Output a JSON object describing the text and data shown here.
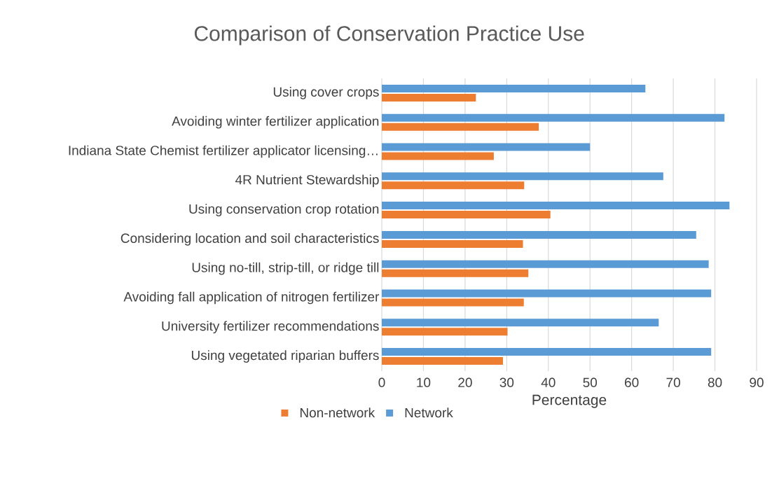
{
  "chart_data": {
    "type": "bar",
    "orientation": "horizontal",
    "title": "Comparison of Conservation Practice Use",
    "xlabel": "Percentage",
    "categories": [
      "Using cover crops",
      "Avoiding winter fertilizer application",
      "Indiana State Chemist fertilizer applicator licensing…",
      "4R Nutrient Stewardship",
      "Using conservation crop rotation",
      "Considering location and soil characteristics",
      "Using no-till, strip-till, or ridge till",
      "Avoiding fall application of nitrogen fertilizer",
      "University fertilizer recommendations",
      "Using vegetated riparian buffers"
    ],
    "series": [
      {
        "name": "Non-network",
        "color": "#ed7d31",
        "values": [
          22.6,
          37.7,
          26.9,
          34.2,
          40.5,
          33.9,
          35.2,
          34.1,
          30.2,
          29.1
        ]
      },
      {
        "name": "Network",
        "color": "#5b9bd5",
        "values": [
          63.3,
          82.3,
          50,
          67.6,
          83.5,
          75.5,
          78.5,
          79.1,
          66.5,
          79.1
        ]
      }
    ],
    "xlim": [
      0,
      90
    ],
    "xticks": [
      0,
      10,
      20,
      30,
      40,
      50,
      60,
      70,
      80,
      90
    ],
    "grid": "x",
    "legend": "bottom"
  }
}
